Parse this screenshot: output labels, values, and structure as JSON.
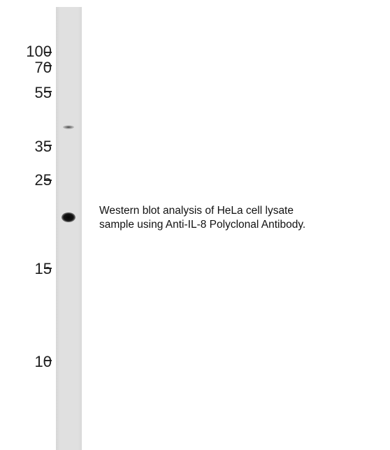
{
  "blot": {
    "markers": [
      "100",
      "70",
      "55",
      "35",
      "25",
      "15",
      "10"
    ],
    "lane_color": "#dedede",
    "band_color": "#111111"
  },
  "caption": {
    "line1": "Western blot analysis of HeLa cell lysate",
    "line2": "sample using Anti-IL-8 Polyclonal Antibody."
  }
}
